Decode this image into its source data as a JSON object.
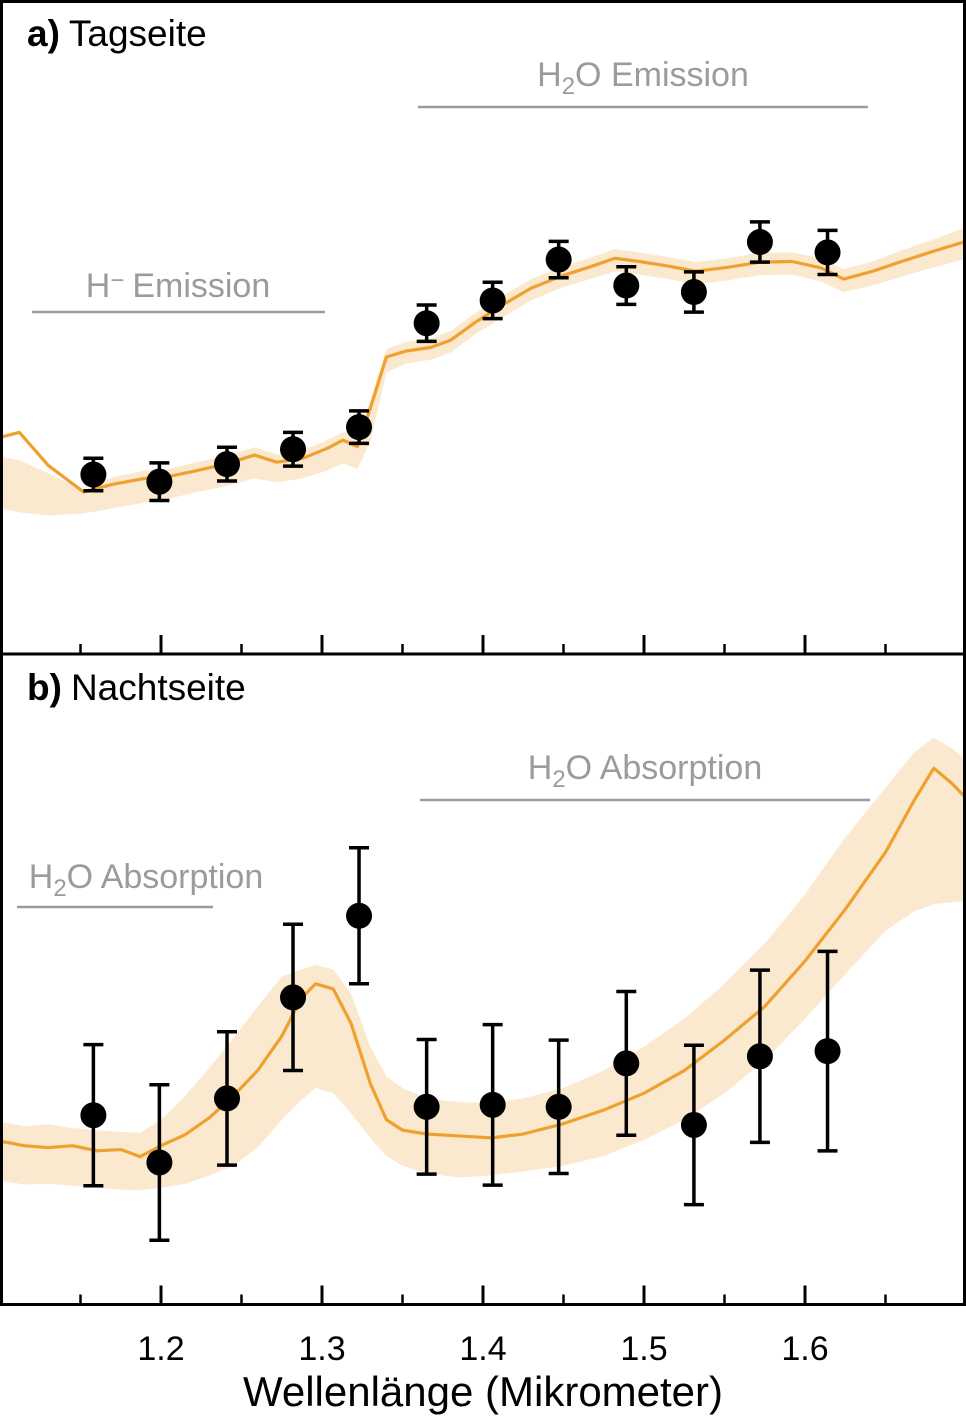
{
  "figure": {
    "x_axis_title": "Wellenlänge (Mikrometer)",
    "x_tick_labels": [
      "1.2",
      "1.3",
      "1.4",
      "1.5",
      "1.6"
    ],
    "panels": [
      {
        "label_prefix": "a)",
        "label": "Tagseite"
      },
      {
        "label_prefix": "b)",
        "label": "Nachtseite"
      }
    ]
  },
  "colors": {
    "model_line": "#EFA12F",
    "band": "#FBE9CF",
    "data_point": "#000000",
    "annotation_gray": "#9B9B9B",
    "axis_black": "#000000",
    "background": "#FFFFFF"
  },
  "chart_data": [
    {
      "id": "tagseite",
      "type": "scatter",
      "title": "a) Tagseite",
      "xlabel": "Wellenlänge (Mikrometer)",
      "ylabel": "",
      "xlim": [
        1.1,
        1.7
      ],
      "ylim": [
        0,
        1
      ],
      "y_unit": "relative Helligkeit (Achse unbeschriftet, 0–1 Panelhöhe)",
      "grid": false,
      "legend": "none",
      "x_ticks": [
        1.2,
        1.3,
        1.4,
        1.5,
        1.6
      ],
      "x_minor_ticks": [
        1.15,
        1.25,
        1.35,
        1.45,
        1.55,
        1.65
      ],
      "points": {
        "x": [
          1.158,
          1.199,
          1.241,
          1.282,
          1.323,
          1.365,
          1.406,
          1.447,
          1.489,
          1.531,
          1.572,
          1.614
        ],
        "y": [
          0.274,
          0.263,
          0.29,
          0.313,
          0.347,
          0.507,
          0.542,
          0.605,
          0.565,
          0.555,
          0.632,
          0.616
        ],
        "yerr": [
          0.025,
          0.029,
          0.026,
          0.026,
          0.025,
          0.028,
          0.028,
          0.028,
          0.029,
          0.031,
          0.031,
          0.034
        ]
      },
      "model": {
        "x": [
          1.1,
          1.112,
          1.13,
          1.152,
          1.17,
          1.19,
          1.205,
          1.222,
          1.24,
          1.258,
          1.272,
          1.288,
          1.303,
          1.313,
          1.322,
          1.33,
          1.34,
          1.352,
          1.368,
          1.38,
          1.395,
          1.412,
          1.43,
          1.448,
          1.468,
          1.482,
          1.497,
          1.515,
          1.532,
          1.552,
          1.572,
          1.592,
          1.61,
          1.624,
          1.642,
          1.66,
          1.68,
          1.7
        ],
        "line": [
          0.331,
          0.339,
          0.288,
          0.247,
          0.259,
          0.268,
          0.271,
          0.28,
          0.29,
          0.304,
          0.293,
          0.299,
          0.314,
          0.327,
          0.317,
          0.376,
          0.455,
          0.464,
          0.47,
          0.481,
          0.508,
          0.535,
          0.561,
          0.579,
          0.595,
          0.607,
          0.602,
          0.595,
          0.587,
          0.593,
          0.601,
          0.602,
          0.592,
          0.575,
          0.587,
          0.602,
          0.618,
          0.633
        ],
        "upper": [
          0.302,
          0.296,
          0.276,
          0.25,
          0.27,
          0.28,
          0.283,
          0.293,
          0.302,
          0.316,
          0.305,
          0.311,
          0.327,
          0.339,
          0.33,
          0.388,
          0.467,
          0.478,
          0.484,
          0.495,
          0.522,
          0.549,
          0.575,
          0.593,
          0.609,
          0.621,
          0.616,
          0.609,
          0.601,
          0.607,
          0.616,
          0.616,
          0.607,
          0.59,
          0.602,
          0.619,
          0.636,
          0.655
        ],
        "lower": [
          0.222,
          0.216,
          0.211,
          0.214,
          0.222,
          0.231,
          0.237,
          0.247,
          0.256,
          0.268,
          0.262,
          0.268,
          0.28,
          0.291,
          0.283,
          0.324,
          0.431,
          0.445,
          0.451,
          0.462,
          0.49,
          0.516,
          0.542,
          0.561,
          0.576,
          0.587,
          0.582,
          0.575,
          0.567,
          0.573,
          0.581,
          0.582,
          0.571,
          0.555,
          0.565,
          0.579,
          0.593,
          0.606
        ]
      },
      "annotations": [
        {
          "id": "h2o-emission",
          "text": "H2O Emission",
          "parts": [
            "H",
            "2",
            "O Emission"
          ],
          "script": "sub",
          "wavelength_range_um": [
            1.36,
            1.64
          ]
        },
        {
          "id": "h-minus-emission",
          "text": "H− Emission",
          "parts": [
            "H",
            "−",
            "Emission"
          ],
          "script": "sup",
          "wavelength_range_um": [
            1.12,
            1.3
          ]
        }
      ]
    },
    {
      "id": "nachtseite",
      "type": "scatter",
      "title": "b) Nachtseite",
      "xlabel": "Wellenlänge (Mikrometer)",
      "ylabel": "",
      "xlim": [
        1.1,
        1.7
      ],
      "ylim": [
        0,
        1
      ],
      "y_unit": "relative Helligkeit (Achse unbeschriftet, 0–1 Panelhöhe)",
      "grid": false,
      "legend": "none",
      "x_ticks": [
        1.2,
        1.3,
        1.4,
        1.5,
        1.6
      ],
      "x_minor_ticks": [
        1.15,
        1.25,
        1.35,
        1.45,
        1.55,
        1.65
      ],
      "points": {
        "x": [
          1.158,
          1.199,
          1.241,
          1.282,
          1.323,
          1.365,
          1.406,
          1.447,
          1.489,
          1.531,
          1.572,
          1.614
        ],
        "y": [
          0.29,
          0.217,
          0.316,
          0.472,
          0.598,
          0.303,
          0.306,
          0.303,
          0.37,
          0.275,
          0.381,
          0.389
        ],
        "yerr": [
          0.109,
          0.12,
          0.103,
          0.113,
          0.105,
          0.104,
          0.124,
          0.103,
          0.111,
          0.123,
          0.133,
          0.154
        ]
      },
      "model": {
        "x": [
          1.1,
          1.115,
          1.13,
          1.145,
          1.16,
          1.175,
          1.187,
          1.2,
          1.215,
          1.23,
          1.245,
          1.26,
          1.275,
          1.287,
          1.296,
          1.307,
          1.318,
          1.33,
          1.34,
          1.35,
          1.365,
          1.385,
          1.405,
          1.425,
          1.45,
          1.475,
          1.5,
          1.525,
          1.55,
          1.575,
          1.6,
          1.625,
          1.65,
          1.668,
          1.68,
          1.691,
          1.7
        ],
        "line": [
          0.25,
          0.243,
          0.24,
          0.243,
          0.235,
          0.237,
          0.226,
          0.243,
          0.26,
          0.286,
          0.32,
          0.359,
          0.412,
          0.47,
          0.493,
          0.485,
          0.432,
          0.339,
          0.283,
          0.267,
          0.261,
          0.258,
          0.255,
          0.261,
          0.277,
          0.298,
          0.324,
          0.359,
          0.406,
          0.458,
          0.528,
          0.608,
          0.696,
          0.777,
          0.826,
          0.803,
          0.78
        ],
        "upper": [
          0.28,
          0.273,
          0.276,
          0.27,
          0.267,
          0.264,
          0.263,
          0.283,
          0.32,
          0.363,
          0.409,
          0.458,
          0.504,
          0.515,
          0.522,
          0.515,
          0.478,
          0.396,
          0.35,
          0.332,
          0.316,
          0.31,
          0.309,
          0.316,
          0.332,
          0.359,
          0.396,
          0.439,
          0.493,
          0.555,
          0.631,
          0.719,
          0.796,
          0.851,
          0.873,
          0.857,
          0.839
        ],
        "lower": [
          0.189,
          0.183,
          0.184,
          0.181,
          0.178,
          0.175,
          0.174,
          0.178,
          0.184,
          0.197,
          0.212,
          0.24,
          0.283,
          0.313,
          0.332,
          0.324,
          0.293,
          0.255,
          0.227,
          0.212,
          0.2,
          0.194,
          0.197,
          0.203,
          0.212,
          0.227,
          0.252,
          0.283,
          0.324,
          0.375,
          0.439,
          0.508,
          0.575,
          0.605,
          0.616,
          0.619,
          0.621
        ]
      },
      "annotations": [
        {
          "id": "h2o-absorption-right",
          "text": "H2O Absorption",
          "parts": [
            "H",
            "2",
            "O Absorption"
          ],
          "script": "sub",
          "wavelength_range_um": [
            1.36,
            1.64
          ]
        },
        {
          "id": "h2o-absorption-left",
          "text": "H2O Absorption",
          "parts": [
            "H",
            "2",
            "O Absorption"
          ],
          "script": "sub",
          "wavelength_range_um": [
            1.11,
            1.23
          ]
        }
      ]
    }
  ]
}
